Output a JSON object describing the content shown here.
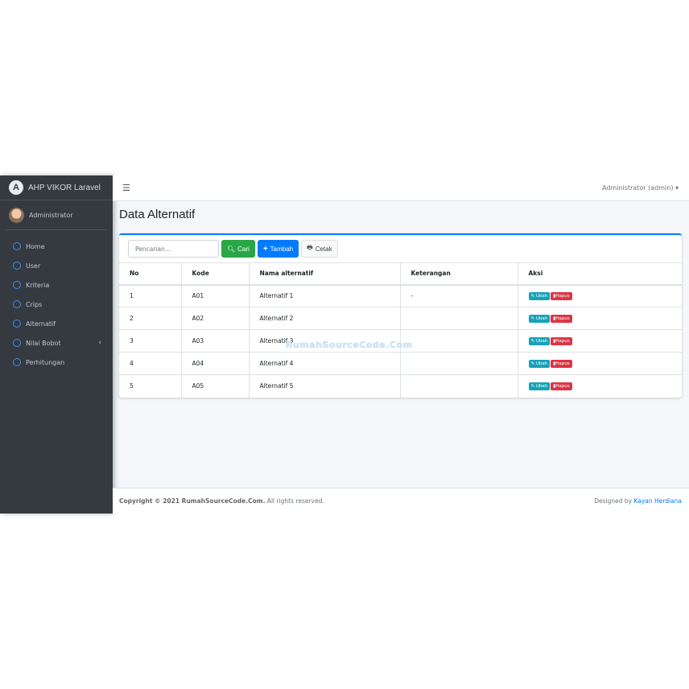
{
  "brand": {
    "title": "AHP VIKOR Laravel",
    "logo_letter": "A"
  },
  "user": {
    "name": "Administrator"
  },
  "sidebar": {
    "items": [
      {
        "label": "Home"
      },
      {
        "label": "User"
      },
      {
        "label": "Kriteria"
      },
      {
        "label": "Crips"
      },
      {
        "label": "Alternatif"
      },
      {
        "label": "Nilai Bobot",
        "has_children": true
      },
      {
        "label": "Perhitungan"
      }
    ]
  },
  "navbar": {
    "menu_icon": "bars-icon",
    "user_menu": "Administrator (admin)"
  },
  "page": {
    "title": "Data Alternatif"
  },
  "toolbar": {
    "search_placeholder": "Pencarian...",
    "search_label": "Cari",
    "add_label": "Tambah",
    "print_label": "Cetak"
  },
  "table": {
    "columns": [
      "No",
      "Kode",
      "Nama alternatif",
      "Keterangan",
      "Aksi"
    ],
    "rows": [
      [
        "1",
        "A01",
        "Alternatif 1",
        "-"
      ],
      [
        "2",
        "A02",
        "Alternatif 2",
        ""
      ],
      [
        "3",
        "A03",
        "Alternatif 3",
        ""
      ],
      [
        "4",
        "A04",
        "Alternatif 4",
        ""
      ],
      [
        "5",
        "A05",
        "Alternatif 5",
        ""
      ]
    ],
    "edit_label": "Ubah",
    "delete_label": "Hapus"
  },
  "watermark": "RumahSourceCode.Com",
  "footer": {
    "copyright": "Copyright © 2021 RumahSourceCode.Com.",
    "rights": "All rights reserved.",
    "designed_by": "Designed by",
    "author": "Kayan Herdiana"
  },
  "colors": {
    "sidebar": "#343a40",
    "primary": "#007bff",
    "success": "#28a745",
    "info": "#17a2b8",
    "danger": "#dc3545"
  }
}
